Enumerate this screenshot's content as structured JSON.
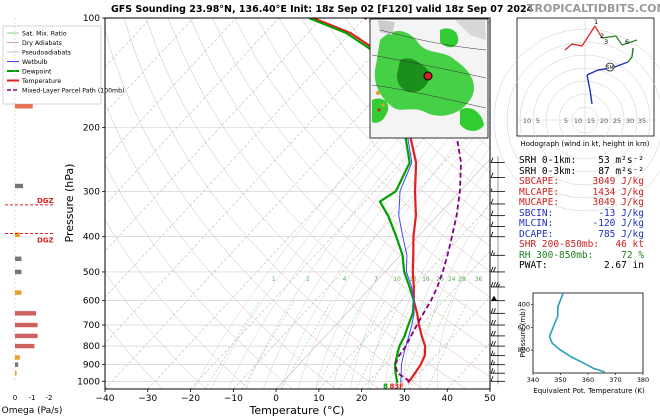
{
  "header": {
    "title": "GFS Sounding 23.98°N, 136.40°E Init: 18z Sep 02 [F120] valid 18z Sep 07 2024",
    "site": "TROPICALTIDBITS.COM"
  },
  "legend": {
    "items": [
      {
        "label": "Sat. Mix. Ratio",
        "color": "#8fd18f",
        "style": "solid-thin"
      },
      {
        "label": "Dry Adiabats",
        "color": "#e0a0a0",
        "style": "solid-thin"
      },
      {
        "label": "Pseudoadiabats",
        "color": "#c8c8c8",
        "style": "solid-thin"
      },
      {
        "label": "Wetbulb",
        "color": "#4444ff",
        "style": "solid"
      },
      {
        "label": "Dewpoint",
        "color": "#00a000",
        "style": "solid-bold"
      },
      {
        "label": "Temperature",
        "color": "#e02020",
        "style": "solid-bold"
      },
      {
        "label": "Mixed-Layer Parcel Path (100mb)",
        "color": "#800080",
        "style": "dashed"
      }
    ]
  },
  "hodograph": {
    "caption": "Hodograph (wind in kt, height in km)",
    "ring_labels": [
      "10",
      "5",
      "5",
      "10",
      "15",
      "20",
      "25",
      "30",
      "35"
    ],
    "height_labels": [
      "1",
      "2",
      "3",
      "6"
    ],
    "storm_motion_label": "SM"
  },
  "indices": [
    {
      "label": "SRH 0-1km:",
      "value": "53 m²s⁻²",
      "color": "#000000"
    },
    {
      "label": "SRH 0-3km:",
      "value": "87 m²s⁻²",
      "color": "#000000"
    },
    {
      "label": "SBCAPE:",
      "value": "3049 J/kg",
      "color": "#d02020"
    },
    {
      "label": "MLCAPE:",
      "value": "1434 J/kg",
      "color": "#d02020"
    },
    {
      "label": "MUCAPE:",
      "value": "3049 J/kg",
      "color": "#d02020"
    },
    {
      "label": "SBCIN:",
      "value": "-13 J/kg",
      "color": "#2030c0"
    },
    {
      "label": "MLCIN:",
      "value": "-120 J/kg",
      "color": "#2030c0"
    },
    {
      "label": "DCAPE:",
      "value": "785 J/kg",
      "color": "#2030c0"
    },
    {
      "label": "SHR 200-850mb:",
      "value": "46 kt",
      "color": "#d02020"
    },
    {
      "label": "RH 300-850mb:",
      "value": "72 %",
      "color": "#208020"
    },
    {
      "label": "PWAT:",
      "value": "2.67 in",
      "color": "#000000"
    }
  ],
  "omega": {
    "xlabel": "Omega (Pa/s)",
    "ticks": [
      "0",
      "-1",
      "-2"
    ],
    "dgz_label": "DGZ",
    "bars": [
      {
        "p": 175,
        "w": -1.1,
        "color": "#e87050"
      },
      {
        "p": 290,
        "w": -0.5,
        "color": "#777777"
      },
      {
        "p": 395,
        "w": -0.3,
        "color": "#e8a020"
      },
      {
        "p": 460,
        "w": -0.4,
        "color": "#777777"
      },
      {
        "p": 500,
        "w": -0.4,
        "color": "#777777"
      },
      {
        "p": 570,
        "w": -0.4,
        "color": "#e8a020"
      },
      {
        "p": 650,
        "w": -1.3,
        "color": "#d06060"
      },
      {
        "p": 700,
        "w": -1.4,
        "color": "#d06060"
      },
      {
        "p": 750,
        "w": -1.4,
        "color": "#d06060"
      },
      {
        "p": 800,
        "w": -1.2,
        "color": "#d06060"
      },
      {
        "p": 860,
        "w": -0.3,
        "color": "#e8a020"
      },
      {
        "p": 900,
        "w": -0.2,
        "color": "#777777"
      },
      {
        "p": 950,
        "w": -0.1,
        "color": "#e8a020"
      }
    ],
    "dgz_levels": [
      327,
      392
    ]
  },
  "theta_inset": {
    "xlabel": "Equivalent Pot. Temperature (K)",
    "ylabel": "Pressure (mb)",
    "x_ticks": [
      "340",
      "350",
      "360",
      "370",
      "380"
    ],
    "y_ticks": [
      "400",
      "600",
      "800"
    ],
    "xlim": [
      340,
      380
    ],
    "ylim": [
      1000,
      300
    ],
    "profile": [
      [
        351,
        300
      ],
      [
        350,
        360
      ],
      [
        349,
        420
      ],
      [
        349,
        500
      ],
      [
        348,
        560
      ],
      [
        347,
        620
      ],
      [
        346,
        680
      ],
      [
        347,
        740
      ],
      [
        350,
        800
      ],
      [
        354,
        860
      ],
      [
        359,
        920
      ],
      [
        362,
        960
      ],
      [
        366,
        990
      ]
    ]
  },
  "surface_labels": {
    "dewpoint": "8",
    "temperature": "83F"
  },
  "chart_data": {
    "type": "line",
    "title": "GFS Sounding 23.98°N, 136.40°E Init: 18z Sep 02 [F120] valid 18z Sep 07 2024",
    "xlabel": "Temperature (°C)",
    "ylabel": "Pressure (hPa)",
    "xlim": [
      -40,
      50
    ],
    "ylim": [
      1050,
      100
    ],
    "y_scale": "log",
    "skew": true,
    "x_ticks": [
      "−40",
      "−30",
      "−20",
      "−10",
      "0",
      "10",
      "20",
      "30",
      "40",
      "50"
    ],
    "y_ticks": [
      "100",
      "200",
      "300",
      "400",
      "500",
      "600",
      "700",
      "800",
      "900",
      "1000"
    ],
    "mixing_ratio_labels": [
      "1",
      "2",
      "4",
      "7",
      "10",
      "13",
      "16",
      "20",
      "24",
      "28",
      "36"
    ],
    "series": [
      {
        "name": "Temperature",
        "color": "#e02020",
        "points": [
          [
            29.5,
            1010
          ],
          [
            29.0,
            950
          ],
          [
            28.5,
            900
          ],
          [
            27.5,
            850
          ],
          [
            25.5,
            800
          ],
          [
            22.5,
            750
          ],
          [
            19.5,
            700
          ],
          [
            16.5,
            650
          ],
          [
            13.0,
            600
          ],
          [
            10.0,
            550
          ],
          [
            6.5,
            500
          ],
          [
            3.0,
            450
          ],
          [
            -1.0,
            400
          ],
          [
            -5.0,
            350
          ],
          [
            -10.5,
            300
          ],
          [
            -16.5,
            250
          ],
          [
            -26.0,
            200
          ],
          [
            -36.0,
            160
          ],
          [
            -45.0,
            130
          ],
          [
            -60.0,
            110
          ],
          [
            -72.0,
            100
          ]
        ]
      },
      {
        "name": "Dewpoint",
        "color": "#00a000",
        "points": [
          [
            27.0,
            1010
          ],
          [
            24.5,
            950
          ],
          [
            22.5,
            900
          ],
          [
            21.0,
            850
          ],
          [
            19.5,
            800
          ],
          [
            18.5,
            750
          ],
          [
            17.0,
            700
          ],
          [
            15.5,
            650
          ],
          [
            13.0,
            600
          ],
          [
            9.0,
            550
          ],
          [
            4.5,
            500
          ],
          [
            0.5,
            450
          ],
          [
            -5.0,
            400
          ],
          [
            -11.5,
            350
          ],
          [
            -16.5,
            320
          ],
          [
            -15.0,
            300
          ],
          [
            -18.0,
            250
          ],
          [
            -27.0,
            200
          ],
          [
            -37.0,
            160
          ],
          [
            -46.0,
            130
          ],
          [
            -61.0,
            110
          ],
          [
            -73.0,
            100
          ]
        ]
      },
      {
        "name": "Wetbulb",
        "color": "#4444ff",
        "points": [
          [
            27.8,
            1010
          ],
          [
            25.8,
            950
          ],
          [
            24.0,
            900
          ],
          [
            22.5,
            850
          ],
          [
            21.0,
            800
          ],
          [
            19.5,
            750
          ],
          [
            17.8,
            700
          ],
          [
            15.8,
            650
          ],
          [
            13.0,
            600
          ],
          [
            9.5,
            550
          ],
          [
            5.0,
            500
          ],
          [
            1.5,
            450
          ],
          [
            -3.5,
            400
          ],
          [
            -9.0,
            350
          ],
          [
            -14.0,
            300
          ],
          [
            -17.5,
            250
          ],
          [
            -26.5,
            200
          ]
        ]
      },
      {
        "name": "Mixed-Layer Parcel Path (100mb)",
        "color": "#800080",
        "dashed": true,
        "points": [
          [
            29.5,
            1000
          ],
          [
            25.0,
            950
          ],
          [
            22.5,
            900
          ],
          [
            21.5,
            850
          ],
          [
            21.0,
            800
          ],
          [
            20.0,
            750
          ],
          [
            19.0,
            700
          ],
          [
            18.0,
            650
          ],
          [
            17.0,
            600
          ],
          [
            15.5,
            550
          ],
          [
            13.5,
            500
          ],
          [
            11.0,
            450
          ],
          [
            8.0,
            400
          ],
          [
            4.5,
            350
          ],
          [
            0.0,
            300
          ],
          [
            -6.0,
            250
          ],
          [
            -15.0,
            200
          ],
          [
            -25.0,
            160
          ],
          [
            -35.0,
            130
          ],
          [
            -50.0,
            110
          ],
          [
            -60.0,
            100
          ]
        ]
      }
    ],
    "wind_barbs": [
      {
        "p": 250,
        "kt": 10
      },
      {
        "p": 275,
        "kt": 10
      },
      {
        "p": 300,
        "kt": 5
      },
      {
        "p": 325,
        "kt": 10
      },
      {
        "p": 350,
        "kt": 10
      },
      {
        "p": 375,
        "kt": 10
      },
      {
        "p": 400,
        "kt": 10
      },
      {
        "p": 450,
        "kt": 15
      },
      {
        "p": 500,
        "kt": 20
      },
      {
        "p": 550,
        "kt": 35
      },
      {
        "p": 600,
        "kt": 50
      },
      {
        "p": 650,
        "kt": 20
      },
      {
        "p": 700,
        "kt": 20
      },
      {
        "p": 750,
        "kt": 20
      },
      {
        "p": 800,
        "kt": 20
      },
      {
        "p": 850,
        "kt": 15
      },
      {
        "p": 900,
        "kt": 15
      },
      {
        "p": 950,
        "kt": 15
      },
      {
        "p": 1000,
        "kt": 10
      }
    ],
    "legend_position": "top-left",
    "grid": true
  }
}
